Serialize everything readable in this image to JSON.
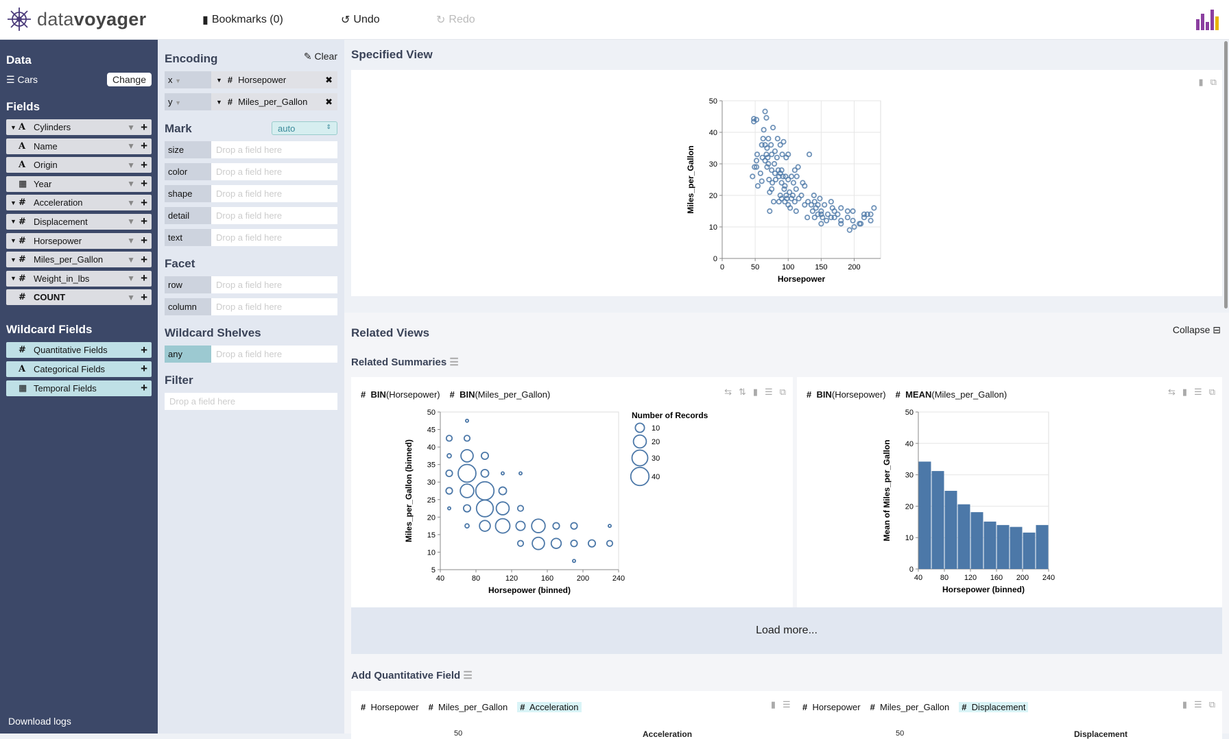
{
  "header": {
    "logo_light": "data",
    "logo_bold": "voyager",
    "bookmarks": "Bookmarks (0)",
    "undo": "Undo",
    "redo": "Redo"
  },
  "sidebar": {
    "data_title": "Data",
    "dataset": "Cars",
    "change": "Change",
    "fields_title": "Fields",
    "fields": [
      {
        "type": "A",
        "name": "Cylinders",
        "caret": true
      },
      {
        "type": "A",
        "name": "Name",
        "caret": false
      },
      {
        "type": "A",
        "name": "Origin",
        "caret": false
      },
      {
        "type": "cal",
        "name": "Year",
        "caret": false
      },
      {
        "type": "#",
        "name": "Acceleration",
        "caret": true
      },
      {
        "type": "#",
        "name": "Displacement",
        "caret": true
      },
      {
        "type": "#",
        "name": "Horsepower",
        "caret": true
      },
      {
        "type": "#",
        "name": "Miles_per_Gallon",
        "caret": true
      },
      {
        "type": "#",
        "name": "Weight_in_lbs",
        "caret": true
      },
      {
        "type": "#",
        "name": "COUNT",
        "caret": false
      }
    ],
    "wildcard_title": "Wildcard Fields",
    "wildcards": [
      {
        "type": "#",
        "name": "Quantitative Fields"
      },
      {
        "type": "A",
        "name": "Categorical Fields"
      },
      {
        "type": "cal",
        "name": "Temporal Fields"
      }
    ],
    "download_logs": "Download logs"
  },
  "encoding": {
    "title": "Encoding",
    "clear": "Clear",
    "x": {
      "channel": "x",
      "field": "Horsepower"
    },
    "y": {
      "channel": "y",
      "field": "Miles_per_Gallon"
    },
    "mark_title": "Mark",
    "mark_value": "auto",
    "placeholder": "Drop a field here",
    "mark_channels": [
      "size",
      "color",
      "shape",
      "detail",
      "text"
    ],
    "facet_title": "Facet",
    "facet_channels": [
      "row",
      "column"
    ],
    "wildcard_title": "Wildcard Shelves",
    "wildcard_channel": "any",
    "filter_title": "Filter"
  },
  "specified": {
    "title": "Specified View"
  },
  "related": {
    "title": "Related Views",
    "collapse": "Collapse",
    "summaries_title": "Related Summaries",
    "load_more": "Load more...",
    "card1": {
      "f1_fn": "BIN",
      "f1": "(Horsepower)",
      "f2_fn": "BIN",
      "f2": "(Miles_per_Gallon)"
    },
    "card2": {
      "f1_fn": "BIN",
      "f1": "(Horsepower)",
      "f2_fn": "MEAN",
      "f2": "(Miles_per_Gallon)"
    },
    "add_q_title": "Add Quantitative Field",
    "card3": {
      "f1": "Horsepower",
      "f2": "Miles_per_Gallon",
      "f3": "Acceleration",
      "tick": "50",
      "legend": "Acceleration"
    },
    "card4": {
      "f1": "Horsepower",
      "f2": "Miles_per_Gallon",
      "f3": "Displacement",
      "tick": "50",
      "legend": "Displacement"
    }
  },
  "colors": {
    "mark": "#4c78a8",
    "sidebar": "#3c4868"
  },
  "chart_data": [
    {
      "type": "scatter",
      "xlabel": "Horsepower",
      "ylabel": "Miles_per_Gallon",
      "xlim": [
        0,
        240
      ],
      "ylim": [
        0,
        50
      ],
      "xticks": [
        0,
        50,
        100,
        150,
        200
      ],
      "yticks": [
        0,
        10,
        20,
        30,
        40,
        50
      ],
      "grid": true,
      "points": [
        [
          46,
          26
        ],
        [
          48,
          43.4
        ],
        [
          48,
          44.3
        ],
        [
          52,
          44
        ],
        [
          52,
          29
        ],
        [
          49,
          29
        ],
        [
          53,
          33
        ],
        [
          52,
          31
        ],
        [
          54,
          23
        ],
        [
          58,
          27
        ],
        [
          60,
          36
        ],
        [
          60,
          24.5
        ],
        [
          61,
          32
        ],
        [
          62,
          38
        ],
        [
          63,
          40.8
        ],
        [
          65,
          46.6
        ],
        [
          67,
          44.6
        ],
        [
          65,
          31
        ],
        [
          65,
          36
        ],
        [
          67,
          33
        ],
        [
          68,
          35
        ],
        [
          68,
          29
        ],
        [
          69,
          32
        ],
        [
          70,
          30
        ],
        [
          70,
          38
        ],
        [
          71,
          25
        ],
        [
          72,
          15
        ],
        [
          72,
          21
        ],
        [
          74,
          36
        ],
        [
          75,
          33
        ],
        [
          75,
          28
        ],
        [
          75,
          22
        ],
        [
          76,
          24
        ],
        [
          77,
          41.5
        ],
        [
          78,
          18
        ],
        [
          79,
          30
        ],
        [
          80,
          34
        ],
        [
          80,
          27
        ],
        [
          81,
          25
        ],
        [
          83,
          32
        ],
        [
          84,
          38
        ],
        [
          85,
          28
        ],
        [
          86,
          18
        ],
        [
          86,
          26
        ],
        [
          88,
          20
        ],
        [
          88,
          36
        ],
        [
          88,
          27
        ],
        [
          90,
          24
        ],
        [
          90,
          28
        ],
        [
          90,
          19
        ],
        [
          91,
          33
        ],
        [
          92,
          26
        ],
        [
          93,
          37
        ],
        [
          94,
          22
        ],
        [
          95,
          18
        ],
        [
          95,
          23
        ],
        [
          96,
          26
        ],
        [
          97,
          20
        ],
        [
          97,
          32
        ],
        [
          98,
          19
        ],
        [
          100,
          33
        ],
        [
          100,
          17
        ],
        [
          100,
          25
        ],
        [
          102,
          21
        ],
        [
          103,
          16
        ],
        [
          105,
          19
        ],
        [
          105,
          26
        ],
        [
          107,
          20
        ],
        [
          108,
          24
        ],
        [
          110,
          18
        ],
        [
          110,
          28
        ],
        [
          112,
          15
        ],
        [
          112,
          22
        ],
        [
          113,
          26
        ],
        [
          115,
          29
        ],
        [
          116,
          19
        ],
        [
          120,
          20
        ],
        [
          122,
          24
        ],
        [
          125,
          17
        ],
        [
          125,
          23
        ],
        [
          129,
          13
        ],
        [
          130,
          18
        ],
        [
          132,
          33
        ],
        [
          135,
          17
        ],
        [
          137,
          15
        ],
        [
          139,
          20
        ],
        [
          140,
          18
        ],
        [
          140,
          13
        ],
        [
          142,
          16
        ],
        [
          145,
          17
        ],
        [
          145,
          14
        ],
        [
          148,
          19
        ],
        [
          150,
          14
        ],
        [
          150,
          11
        ],
        [
          150,
          15
        ],
        [
          152,
          13
        ],
        [
          155,
          17
        ],
        [
          158,
          12
        ],
        [
          160,
          14
        ],
        [
          165,
          18
        ],
        [
          165,
          13
        ],
        [
          167,
          16
        ],
        [
          170,
          13
        ],
        [
          170,
          15
        ],
        [
          175,
          14
        ],
        [
          180,
          11
        ],
        [
          180,
          16
        ],
        [
          180,
          12
        ],
        [
          190,
          13
        ],
        [
          190,
          15
        ],
        [
          193,
          9
        ],
        [
          198,
          15
        ],
        [
          198,
          12
        ],
        [
          200,
          10
        ],
        [
          208,
          11
        ],
        [
          210,
          11
        ],
        [
          215,
          14
        ],
        [
          215,
          13
        ],
        [
          220,
          14
        ],
        [
          225,
          14
        ],
        [
          225,
          12
        ],
        [
          230,
          16
        ]
      ]
    },
    {
      "type": "scatter",
      "xlabel": "Horsepower (binned)",
      "ylabel": "Miles_per_Gallon (binned)",
      "xlim": [
        40,
        240
      ],
      "ylim": [
        5,
        50
      ],
      "xticks": [
        40,
        80,
        120,
        160,
        200,
        240
      ],
      "yticks": [
        5,
        10,
        15,
        20,
        25,
        30,
        35,
        40,
        45,
        50
      ],
      "legend": {
        "title": "Number of Records",
        "values": [
          10,
          20,
          30,
          40
        ]
      },
      "points": [
        [
          70,
          47.5,
          1
        ],
        [
          50,
          42.5,
          4
        ],
        [
          70,
          42.5,
          4
        ],
        [
          50,
          37.5,
          2
        ],
        [
          70,
          37.5,
          18
        ],
        [
          90,
          37.5,
          6
        ],
        [
          50,
          32.5,
          5
        ],
        [
          70,
          32.5,
          38
        ],
        [
          90,
          32.5,
          7
        ],
        [
          110,
          32.5,
          1
        ],
        [
          130,
          32.5,
          1
        ],
        [
          50,
          27.5,
          5
        ],
        [
          70,
          27.5,
          22
        ],
        [
          90,
          27.5,
          40
        ],
        [
          110,
          27.5,
          7
        ],
        [
          50,
          22.5,
          1
        ],
        [
          70,
          22.5,
          6
        ],
        [
          90,
          22.5,
          34
        ],
        [
          110,
          22.5,
          20
        ],
        [
          130,
          22.5,
          4
        ],
        [
          70,
          17.5,
          2
        ],
        [
          90,
          17.5,
          14
        ],
        [
          110,
          17.5,
          25
        ],
        [
          130,
          17.5,
          10
        ],
        [
          150,
          17.5,
          22
        ],
        [
          170,
          17.5,
          5
        ],
        [
          190,
          17.5,
          5
        ],
        [
          230,
          17.5,
          1
        ],
        [
          130,
          12.5,
          4
        ],
        [
          150,
          12.5,
          18
        ],
        [
          170,
          12.5,
          12
        ],
        [
          190,
          12.5,
          5
        ],
        [
          210,
          12.5,
          6
        ],
        [
          230,
          12.5,
          4
        ],
        [
          190,
          7.5,
          1
        ]
      ]
    },
    {
      "type": "bar",
      "xlabel": "Horsepower (binned)",
      "ylabel": "Mean of Miles_per_Gallon",
      "xlim": [
        40,
        240
      ],
      "ylim": [
        0,
        50
      ],
      "xticks": [
        40,
        80,
        120,
        160,
        200,
        240
      ],
      "yticks": [
        0,
        10,
        20,
        30,
        40,
        50
      ],
      "bins": [
        [
          40,
          60
        ],
        [
          60,
          80
        ],
        [
          80,
          100
        ],
        [
          100,
          120
        ],
        [
          120,
          140
        ],
        [
          140,
          160
        ],
        [
          160,
          180
        ],
        [
          180,
          200
        ],
        [
          200,
          220
        ],
        [
          220,
          240
        ]
      ],
      "values": [
        34.2,
        31.2,
        24.9,
        20.6,
        18.1,
        15.1,
        14.0,
        13.4,
        11.6,
        14.0
      ]
    }
  ]
}
